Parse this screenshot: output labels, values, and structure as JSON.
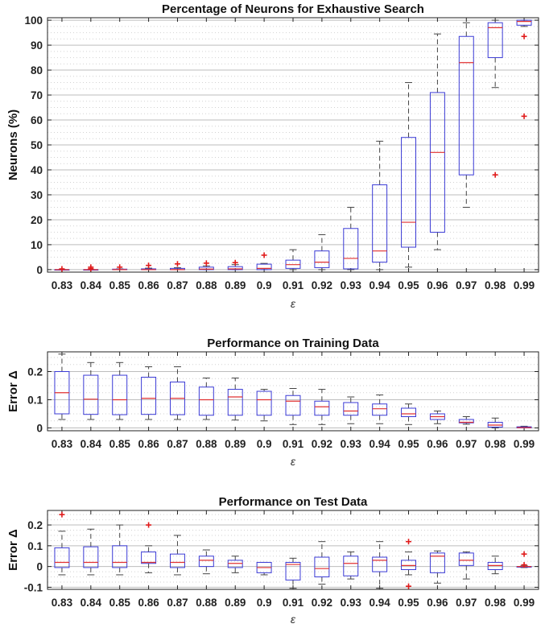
{
  "chart_data": [
    {
      "type": "box",
      "title": "Percentage of Neurons for Exhaustive Search",
      "xlabel": "ε",
      "ylabel": "Neurons (%)",
      "categories": [
        "0.83",
        "0.84",
        "0.85",
        "0.86",
        "0.87",
        "0.88",
        "0.89",
        "0.9",
        "0.91",
        "0.92",
        "0.93",
        "0.94",
        "0.95",
        "0.96",
        "0.97",
        "0.98",
        "0.99"
      ],
      "ylim": [
        -1,
        101
      ],
      "yticks": [
        0,
        10,
        20,
        30,
        40,
        50,
        60,
        70,
        80,
        90,
        100
      ],
      "yticklabels": [
        "0",
        "10",
        "20",
        "30",
        "40",
        "50",
        "60",
        "70",
        "80",
        "90",
        "100"
      ],
      "minor_step": 5,
      "boxes": [
        {
          "lw": 0,
          "q1": 0,
          "median": 0,
          "q3": 0,
          "uw": 0,
          "outliers": [
            0.3
          ]
        },
        {
          "lw": 0,
          "q1": 0,
          "median": 0,
          "q3": 0,
          "uw": 0,
          "outliers": [
            0.4,
            1.0
          ]
        },
        {
          "lw": 0,
          "q1": 0,
          "median": 0,
          "q3": 0.2,
          "uw": 0.3,
          "outliers": [
            1.0
          ]
        },
        {
          "lw": 0,
          "q1": 0,
          "median": 0,
          "q3": 0.3,
          "uw": 0.6,
          "outliers": [
            1.7
          ]
        },
        {
          "lw": 0,
          "q1": 0,
          "median": 0,
          "q3": 0.5,
          "uw": 0.8,
          "outliers": [
            2.3
          ]
        },
        {
          "lw": 0,
          "q1": 0,
          "median": 0.2,
          "q3": 1.0,
          "uw": 1.5,
          "outliers": [
            2.6
          ]
        },
        {
          "lw": 0,
          "q1": 0,
          "median": 0.3,
          "q3": 1.2,
          "uw": 2.0,
          "outliers": [
            2.8
          ]
        },
        {
          "lw": 0,
          "q1": 0,
          "median": 0.5,
          "q3": 2.2,
          "uw": 2.5,
          "outliers": [
            5.8
          ]
        },
        {
          "lw": 0,
          "q1": 0.5,
          "median": 2.0,
          "q3": 3.8,
          "uw": 8.0,
          "outliers": []
        },
        {
          "lw": 0,
          "q1": 0.8,
          "median": 3.0,
          "q3": 7.5,
          "uw": 14.0,
          "outliers": []
        },
        {
          "lw": 0,
          "q1": 0.3,
          "median": 4.5,
          "q3": 16.5,
          "uw": 25.0,
          "outliers": []
        },
        {
          "lw": 0,
          "q1": 3.0,
          "median": 7.5,
          "q3": 34.0,
          "uw": 51.5,
          "outliers": []
        },
        {
          "lw": 1.0,
          "q1": 9.0,
          "median": 19.0,
          "q3": 53.0,
          "uw": 75.0,
          "outliers": []
        },
        {
          "lw": 8.0,
          "q1": 15.0,
          "median": 47.0,
          "q3": 71.0,
          "uw": 94.5,
          "outliers": []
        },
        {
          "lw": 25.0,
          "q1": 38.0,
          "median": 83.0,
          "q3": 93.5,
          "uw": 99.0,
          "outliers": []
        },
        {
          "lw": 73.0,
          "q1": 85.0,
          "median": 97.0,
          "q3": 99.0,
          "uw": 100.0,
          "outliers": [
            38.0
          ]
        },
        {
          "lw": 97.5,
          "q1": 98.0,
          "median": 99.5,
          "q3": 100.0,
          "uw": 100.0,
          "outliers": [
            93.5,
            61.5
          ]
        }
      ]
    },
    {
      "type": "box",
      "title": "Performance on Training Data",
      "xlabel": "ε",
      "ylabel": "Error Δ",
      "categories": [
        "0.83",
        "0.84",
        "0.85",
        "0.86",
        "0.87",
        "0.88",
        "0.89",
        "0.9",
        "0.91",
        "0.92",
        "0.93",
        "0.94",
        "0.95",
        "0.96",
        "0.97",
        "0.98",
        "0.99"
      ],
      "ylim": [
        -0.01,
        0.27
      ],
      "yticks": [
        0,
        0.1,
        0.2
      ],
      "yticklabels": [
        "0",
        "0.1",
        "0.2"
      ],
      "minor_step": 0.05,
      "boxes": [
        {
          "lw": 0.03,
          "q1": 0.05,
          "median": 0.125,
          "q3": 0.2,
          "uw": 0.262,
          "outliers": []
        },
        {
          "lw": 0.03,
          "q1": 0.048,
          "median": 0.102,
          "q3": 0.187,
          "uw": 0.232,
          "outliers": []
        },
        {
          "lw": 0.03,
          "q1": 0.047,
          "median": 0.1,
          "q3": 0.187,
          "uw": 0.232,
          "outliers": []
        },
        {
          "lw": 0.03,
          "q1": 0.048,
          "median": 0.105,
          "q3": 0.18,
          "uw": 0.217,
          "outliers": []
        },
        {
          "lw": 0.03,
          "q1": 0.047,
          "median": 0.105,
          "q3": 0.163,
          "uw": 0.217,
          "outliers": []
        },
        {
          "lw": 0.03,
          "q1": 0.045,
          "median": 0.1,
          "q3": 0.145,
          "uw": 0.177,
          "outliers": []
        },
        {
          "lw": 0.028,
          "q1": 0.045,
          "median": 0.11,
          "q3": 0.137,
          "uw": 0.177,
          "outliers": []
        },
        {
          "lw": 0.025,
          "q1": 0.045,
          "median": 0.1,
          "q3": 0.13,
          "uw": 0.137,
          "outliers": []
        },
        {
          "lw": 0.012,
          "q1": 0.045,
          "median": 0.095,
          "q3": 0.115,
          "uw": 0.14,
          "outliers": []
        },
        {
          "lw": 0.012,
          "q1": 0.045,
          "median": 0.075,
          "q3": 0.095,
          "uw": 0.137,
          "outliers": []
        },
        {
          "lw": 0.015,
          "q1": 0.045,
          "median": 0.06,
          "q3": 0.09,
          "uw": 0.11,
          "outliers": []
        },
        {
          "lw": 0.015,
          "q1": 0.045,
          "median": 0.068,
          "q3": 0.085,
          "uw": 0.117,
          "outliers": []
        },
        {
          "lw": 0.012,
          "q1": 0.04,
          "median": 0.05,
          "q3": 0.07,
          "uw": 0.085,
          "outliers": []
        },
        {
          "lw": 0.015,
          "q1": 0.03,
          "median": 0.04,
          "q3": 0.05,
          "uw": 0.06,
          "outliers": []
        },
        {
          "lw": 0.013,
          "q1": 0.018,
          "median": 0.02,
          "q3": 0.03,
          "uw": 0.04,
          "outliers": []
        },
        {
          "lw": 0.0,
          "q1": 0.003,
          "median": 0.01,
          "q3": 0.02,
          "uw": 0.035,
          "outliers": []
        },
        {
          "lw": 0.0,
          "q1": 0.0,
          "median": 0.001,
          "q3": 0.004,
          "uw": 0.006,
          "outliers": []
        }
      ]
    },
    {
      "type": "box",
      "title": "Performance on Test Data",
      "xlabel": "ε",
      "ylabel": "Error Δ",
      "categories": [
        "0.83",
        "0.84",
        "0.85",
        "0.86",
        "0.87",
        "0.88",
        "0.89",
        "0.9",
        "0.91",
        "0.92",
        "0.93",
        "0.94",
        "0.95",
        "0.96",
        "0.97",
        "0.98",
        "0.99"
      ],
      "ylim": [
        -0.11,
        0.27
      ],
      "yticks": [
        -0.1,
        0,
        0.1,
        0.2
      ],
      "yticklabels": [
        "-0.1",
        "0",
        "0.1",
        "0.2"
      ],
      "minor_step": 0.05,
      "boxes": [
        {
          "lw": -0.04,
          "q1": -0.005,
          "median": 0.02,
          "q3": 0.09,
          "uw": 0.17,
          "outliers": [
            0.25
          ]
        },
        {
          "lw": -0.04,
          "q1": -0.005,
          "median": 0.02,
          "q3": 0.095,
          "uw": 0.18,
          "outliers": []
        },
        {
          "lw": -0.04,
          "q1": -0.005,
          "median": 0.02,
          "q3": 0.1,
          "uw": 0.2,
          "outliers": []
        },
        {
          "lw": -0.03,
          "q1": 0.015,
          "median": 0.02,
          "q3": 0.07,
          "uw": 0.1,
          "outliers": [
            0.2
          ]
        },
        {
          "lw": -0.04,
          "q1": -0.005,
          "median": 0.02,
          "q3": 0.06,
          "uw": 0.15,
          "outliers": []
        },
        {
          "lw": -0.035,
          "q1": 0.0,
          "median": 0.03,
          "q3": 0.05,
          "uw": 0.08,
          "outliers": []
        },
        {
          "lw": -0.03,
          "q1": -0.005,
          "median": 0.015,
          "q3": 0.03,
          "uw": 0.05,
          "outliers": []
        },
        {
          "lw": -0.04,
          "q1": -0.03,
          "median": -0.005,
          "q3": 0.02,
          "uw": 0.02,
          "outliers": []
        },
        {
          "lw": -0.105,
          "q1": -0.065,
          "median": 0.01,
          "q3": 0.02,
          "uw": 0.04,
          "outliers": []
        },
        {
          "lw": -0.085,
          "q1": -0.05,
          "median": -0.01,
          "q3": 0.045,
          "uw": 0.12,
          "outliers": []
        },
        {
          "lw": -0.06,
          "q1": -0.045,
          "median": 0.015,
          "q3": 0.05,
          "uw": 0.07,
          "outliers": []
        },
        {
          "lw": -0.105,
          "q1": -0.025,
          "median": 0.03,
          "q3": 0.045,
          "uw": 0.12,
          "outliers": []
        },
        {
          "lw": -0.04,
          "q1": -0.015,
          "median": 0.005,
          "q3": 0.03,
          "uw": 0.07,
          "outliers": [
            -0.095,
            0.12
          ]
        },
        {
          "lw": -0.08,
          "q1": -0.03,
          "median": 0.05,
          "q3": 0.065,
          "uw": 0.075,
          "outliers": []
        },
        {
          "lw": -0.06,
          "q1": 0.005,
          "median": 0.03,
          "q3": 0.065,
          "uw": 0.07,
          "outliers": []
        },
        {
          "lw": -0.035,
          "q1": -0.015,
          "median": 0.005,
          "q3": 0.02,
          "uw": 0.05,
          "outliers": []
        },
        {
          "lw": -0.005,
          "q1": -0.003,
          "median": 0.0,
          "q3": 0.0,
          "uw": 0.005,
          "outliers": [
            0.06,
            0.008
          ]
        }
      ]
    }
  ]
}
